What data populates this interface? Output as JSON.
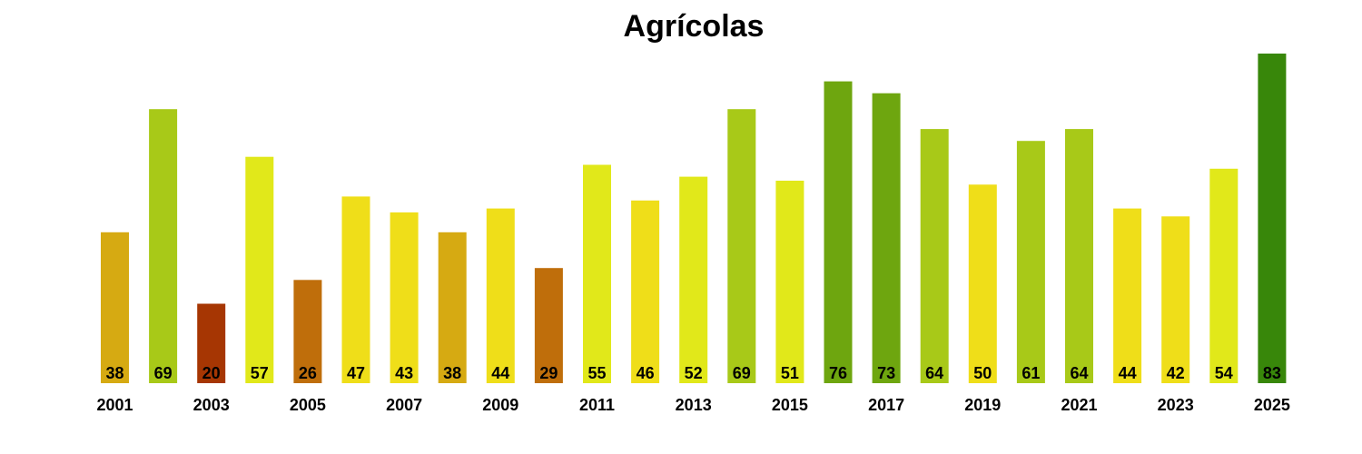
{
  "chart_data": {
    "type": "bar",
    "title": "Agrícolas",
    "xlabel": "",
    "ylabel": "",
    "ylim": [
      0,
      83
    ],
    "grid": false,
    "legend": "none",
    "categories": [
      "2001",
      "2002",
      "2003",
      "2004",
      "2005",
      "2006",
      "2007",
      "2008",
      "2009",
      "2010",
      "2011",
      "2012",
      "2013",
      "2014",
      "2015",
      "2016",
      "2017",
      "2018",
      "2019",
      "2020",
      "2021",
      "2022",
      "2023",
      "2024",
      "2025"
    ],
    "values": [
      38,
      69,
      20,
      57,
      26,
      47,
      43,
      38,
      44,
      29,
      55,
      46,
      52,
      69,
      51,
      76,
      73,
      64,
      50,
      61,
      64,
      44,
      42,
      54,
      83
    ],
    "x_tick_labels": [
      "2001",
      "2003",
      "2005",
      "2007",
      "2009",
      "2011",
      "2013",
      "2015",
      "2017",
      "2019",
      "2021",
      "2023",
      "2025"
    ],
    "bar_colors": [
      "#d6aa12",
      "#a8c918",
      "#a63603",
      "#e1e81a",
      "#bf6e0b",
      "#efde19",
      "#efde19",
      "#d6aa12",
      "#efde19",
      "#bf6e0b",
      "#e1e81a",
      "#efde19",
      "#e1e81a",
      "#a8c918",
      "#e1e81a",
      "#6ea60f",
      "#6ea60f",
      "#a8c918",
      "#efde19",
      "#a8c918",
      "#a8c918",
      "#efde19",
      "#efde19",
      "#e1e81a",
      "#38870a"
    ]
  }
}
